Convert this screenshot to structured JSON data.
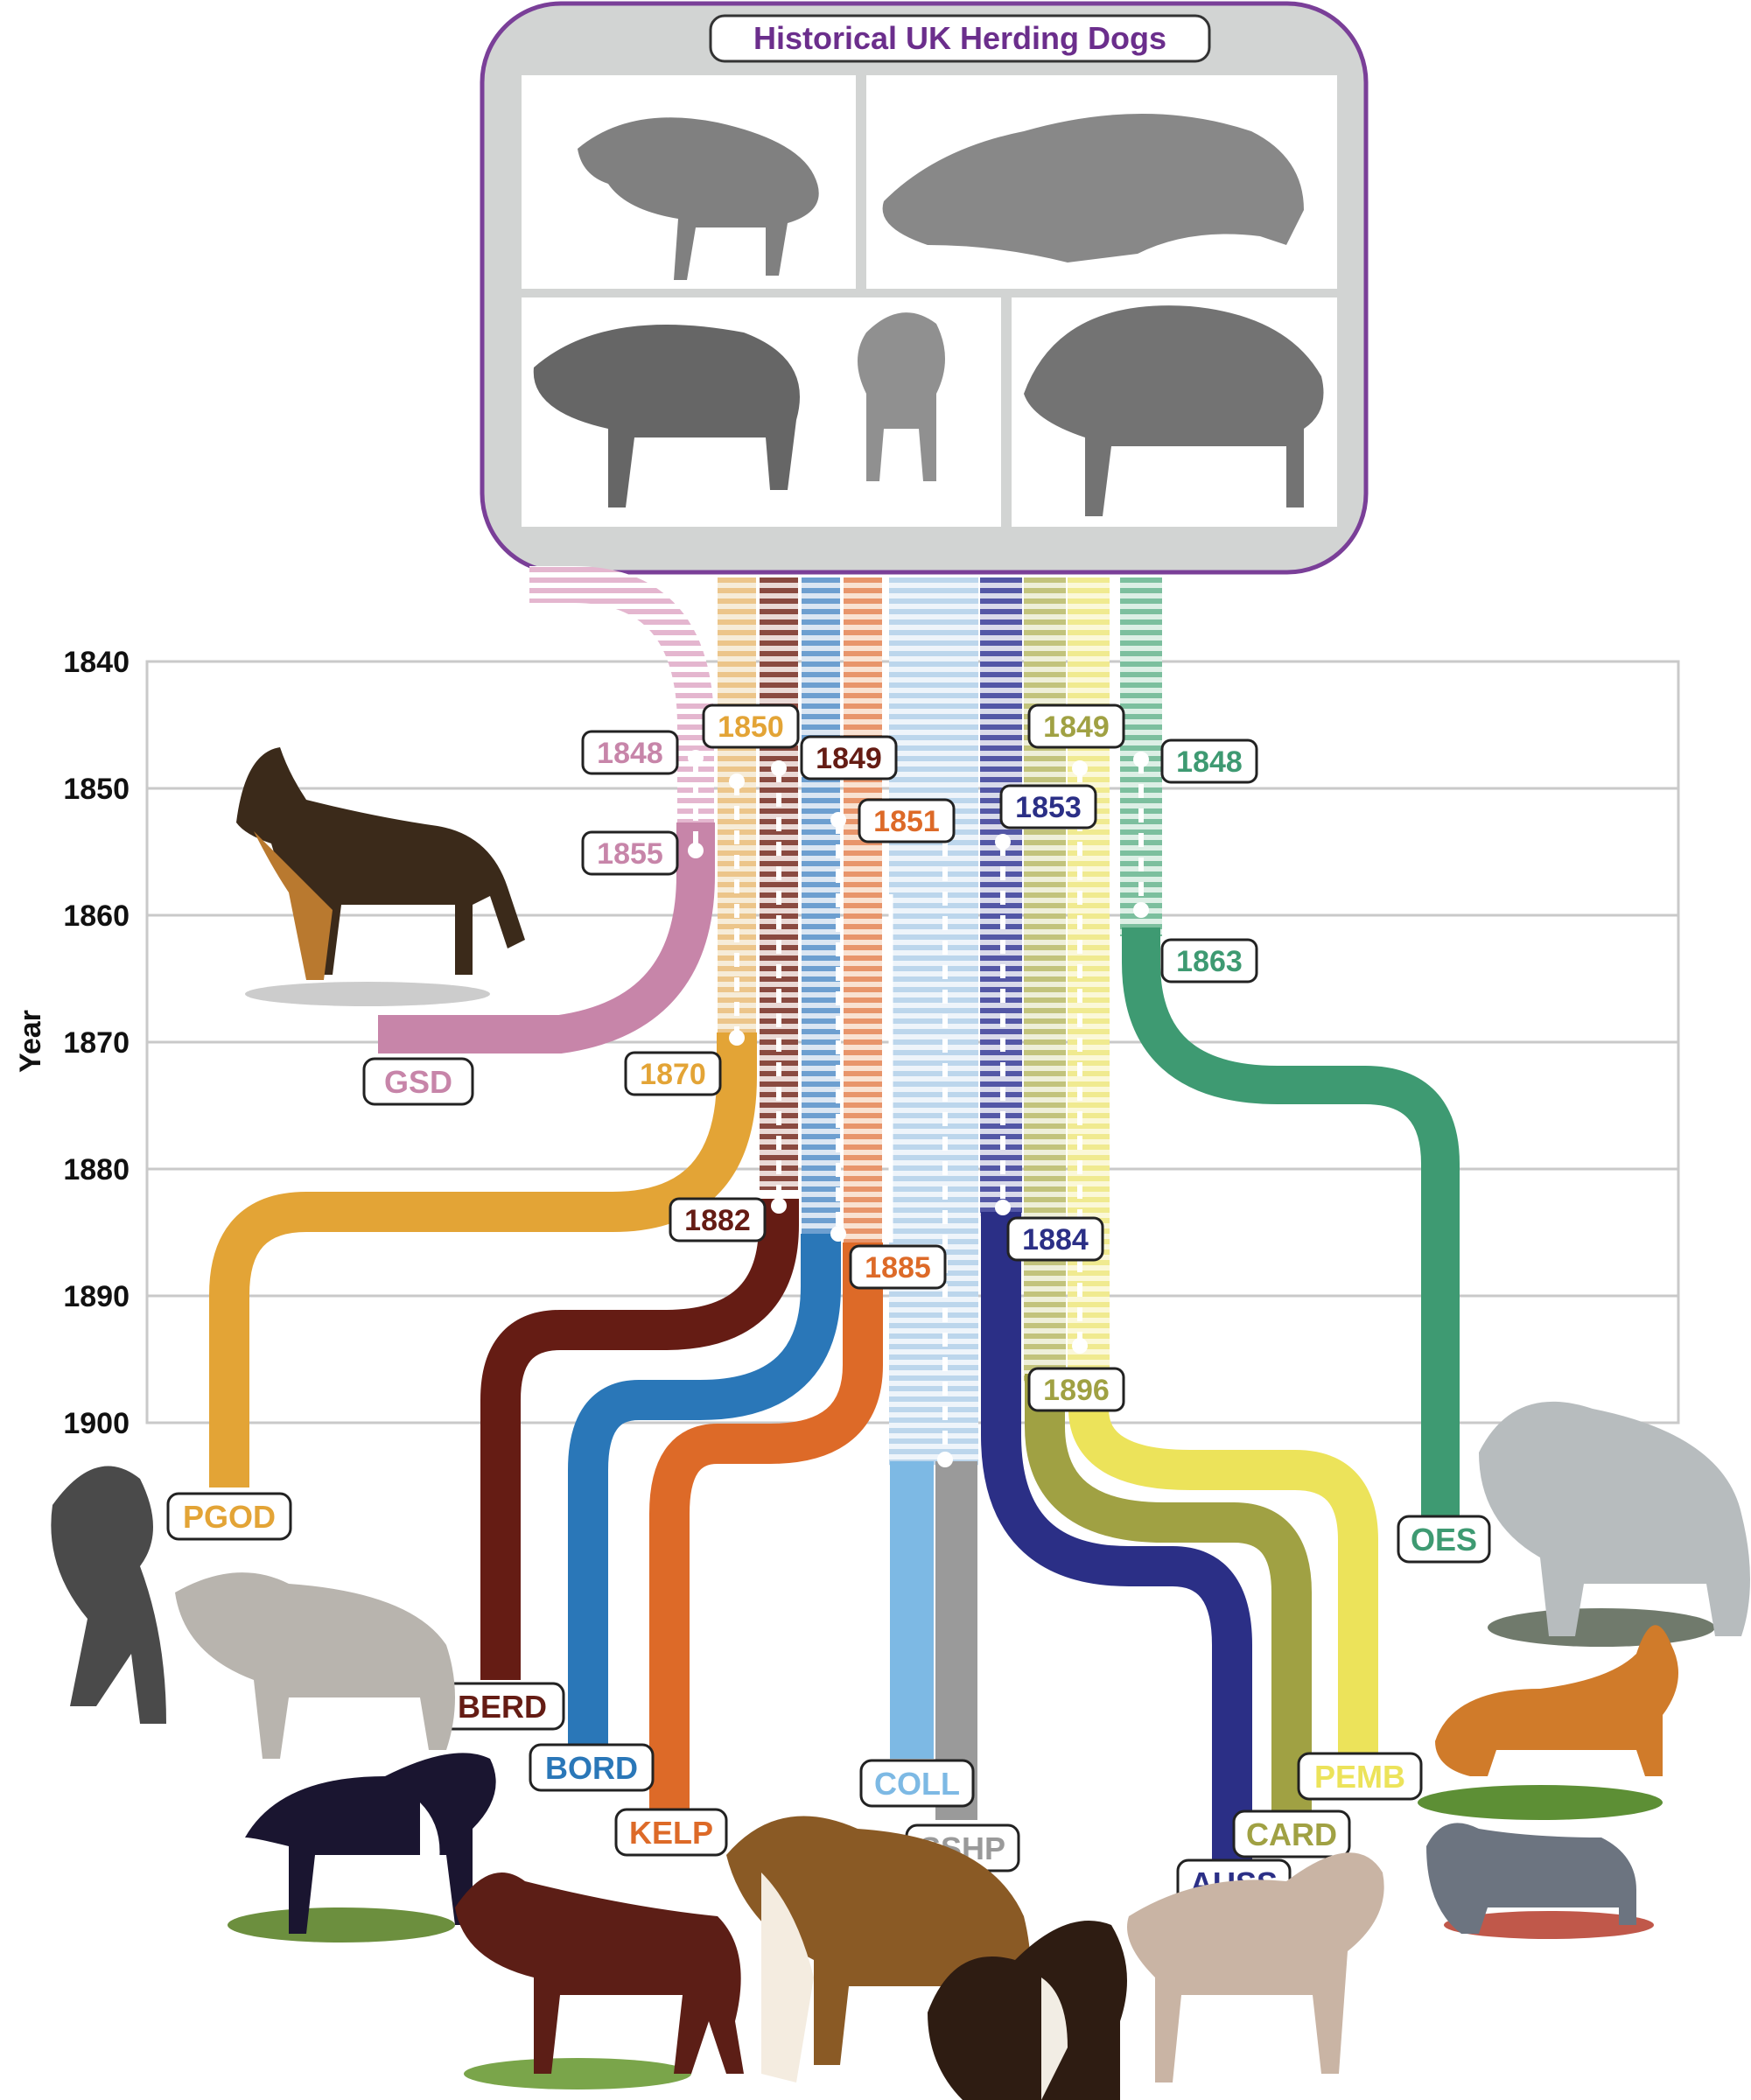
{
  "header": {
    "title": "Historical UK Herding Dogs",
    "title_color": "#6b2e8c",
    "panel_fill": "#d2d4d3",
    "panel_border": "#7a3f98"
  },
  "axis": {
    "label": "Year",
    "ticks": [
      "1840",
      "1850",
      "1860",
      "1870",
      "1880",
      "1890",
      "1900"
    ],
    "tick_years": [
      1840,
      1850,
      1860,
      1870,
      1880,
      1890,
      1900
    ]
  },
  "breeds": [
    {
      "id": "GSD",
      "label": "GSD",
      "color": "#c785a9",
      "start_label": "1848",
      "end_label": "1855"
    },
    {
      "id": "PGOD",
      "label": "PGOD",
      "color": "#e3a436",
      "start_label": "1850",
      "end_label": "1870"
    },
    {
      "id": "BERD",
      "label": "BERD",
      "color": "#651c14",
      "start_label": "1849",
      "end_label": "1882"
    },
    {
      "id": "BORD",
      "label": "BORD",
      "color": "#2a77b8"
    },
    {
      "id": "KELP",
      "label": "KELP",
      "color": "#dd6a28",
      "start_label": "1851",
      "end_label": "1885"
    },
    {
      "id": "COLL",
      "label": "COLL",
      "color": "#7db9e4"
    },
    {
      "id": "SSHP",
      "label": "SSHP",
      "color": "#9a9a9a"
    },
    {
      "id": "AUSS",
      "label": "AUSS",
      "color": "#2b2f86",
      "start_label": "1853",
      "end_label": "1884"
    },
    {
      "id": "CARD",
      "label": "CARD",
      "color": "#a0a143",
      "start_label": "1849",
      "end_label": "1896"
    },
    {
      "id": "PEMB",
      "label": "PEMB",
      "color": "#ece35a"
    },
    {
      "id": "OES",
      "label": "OES",
      "color": "#3e9a72",
      "start_label": "1848",
      "end_label": "1863"
    }
  ]
}
